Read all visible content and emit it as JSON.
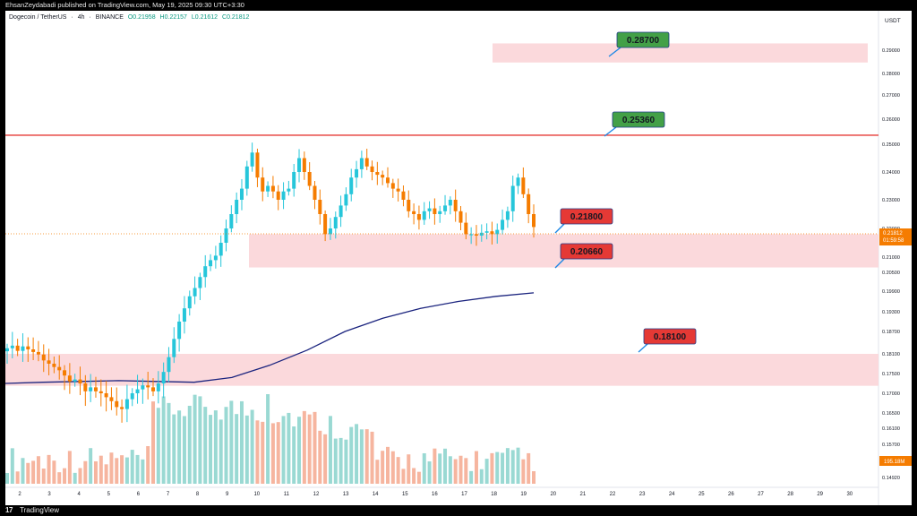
{
  "header": {
    "publish_text": "EhsanZeydabadi published on TradingView.com, May 19, 2025 09:30 UTC+3:30"
  },
  "footer": {
    "brand_text": "TradingView",
    "logo_glyph": "17"
  },
  "symbol": {
    "name": "Dogecoin / TetherUS",
    "interval": "4h",
    "exchange": "BINANCE",
    "open": "O0.21958",
    "high": "H0.22157",
    "low": "L0.21612",
    "close": "C0.21812"
  },
  "chart_data": {
    "type": "candlestick",
    "currency": "USDT",
    "price_scale": [
      "0.29000",
      "0.28000",
      "0.27000",
      "0.26000",
      "0.25000",
      "0.24000",
      "0.23000",
      "0.22000",
      "0.21000",
      "0.20500",
      "0.19900",
      "0.19300",
      "0.18700",
      "0.18100",
      "0.17500",
      "0.17000",
      "0.16500",
      "0.16100",
      "0.15700",
      "0.14920"
    ],
    "x_ticks": [
      "2",
      "3",
      "4",
      "5",
      "6",
      "7",
      "8",
      "9",
      "10",
      "11",
      "12",
      "13",
      "14",
      "15",
      "16",
      "17",
      "18",
      "19",
      "20",
      "21",
      "22",
      "23",
      "24",
      "25",
      "26",
      "27",
      "28",
      "29",
      "30"
    ],
    "current_price": "0.21812",
    "countdown": "01:59:58",
    "volume_label": "195.18M",
    "colors": {
      "up": "#26c6da",
      "down": "#f57c00",
      "vol_up": "#9ad9d3",
      "vol_down": "#f6b59f",
      "zone": "#fbd9dc",
      "ma": "#1a237e",
      "resistance": "#e53935",
      "label_green": "#43a047",
      "label_red": "#e53935"
    },
    "resistance_line": 0.2536,
    "zones": [
      {
        "name": "target-zone",
        "from": 0.2847,
        "to": 0.2929
      },
      {
        "name": "support-zone-upper",
        "from": 0.2066,
        "to": 0.218
      },
      {
        "name": "support-zone-lower",
        "from": 0.1719,
        "to": 0.181
      }
    ],
    "labels": [
      {
        "name": "label-0-28700",
        "text": "0.28700",
        "color": "green"
      },
      {
        "name": "label-0-25360",
        "text": "0.25360",
        "color": "green"
      },
      {
        "name": "label-0-21800",
        "text": "0.21800",
        "color": "red"
      },
      {
        "name": "label-0-20660",
        "text": "0.20660",
        "color": "red"
      },
      {
        "name": "label-0-18100",
        "text": "0.18100",
        "color": "red"
      }
    ],
    "price_path": [
      0.1825,
      0.1832,
      0.1818,
      0.183,
      0.1822,
      0.1815,
      0.1808,
      0.179,
      0.178,
      0.177,
      0.176,
      0.1745,
      0.173,
      0.1735,
      0.1725,
      0.1705,
      0.1715,
      0.1705,
      0.17,
      0.169,
      0.168,
      0.1665,
      0.166,
      0.1685,
      0.17,
      0.171,
      0.172,
      0.1715,
      0.1705,
      0.1725,
      0.1755,
      0.18,
      0.185,
      0.19,
      0.194,
      0.1975,
      0.2,
      0.2035,
      0.207,
      0.209,
      0.2105,
      0.215,
      0.22,
      0.225,
      0.23,
      0.234,
      0.242,
      0.247,
      0.238,
      0.233,
      0.235,
      0.233,
      0.23,
      0.233,
      0.234,
      0.24,
      0.245,
      0.24,
      0.235,
      0.23,
      0.225,
      0.218,
      0.22,
      0.224,
      0.228,
      0.232,
      0.238,
      0.241,
      0.245,
      0.242,
      0.24,
      0.239,
      0.238,
      0.236,
      0.234,
      0.233,
      0.23,
      0.226,
      0.225,
      0.223,
      0.226,
      0.227,
      0.225,
      0.226,
      0.228,
      0.23,
      0.226,
      0.222,
      0.218,
      0.218,
      0.2175,
      0.2185,
      0.219,
      0.218,
      0.2195,
      0.223,
      0.226,
      0.235,
      0.238,
      0.232,
      0.225,
      0.2205
    ],
    "ma_path": [
      0.1725,
      0.1728,
      0.173,
      0.1732,
      0.173,
      0.1728,
      0.174,
      0.1775,
      0.182,
      0.187,
      0.191,
      0.194,
      0.196,
      0.1975,
      0.1985
    ]
  }
}
